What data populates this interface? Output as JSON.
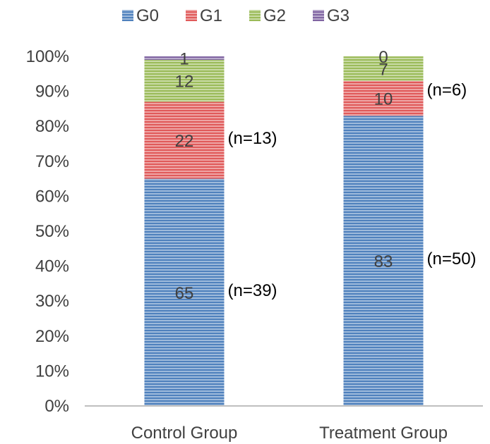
{
  "chart_data": {
    "type": "bar",
    "stacked": true,
    "percent_stacked": true,
    "categories": [
      "Control Group",
      "Treatment Group"
    ],
    "series": [
      {
        "name": "G0",
        "values": [
          65,
          83
        ],
        "color": "#4F81BD"
      },
      {
        "name": "G1",
        "values": [
          22,
          10
        ],
        "color": "#E05A5A"
      },
      {
        "name": "G2",
        "values": [
          12,
          7
        ],
        "color": "#9BBB59"
      },
      {
        "name": "G3",
        "values": [
          1,
          0
        ],
        "color": "#8064A2"
      }
    ],
    "ylim": [
      0,
      100
    ],
    "y_ticks": [
      "0%",
      "10%",
      "20%",
      "30%",
      "40%",
      "50%",
      "60%",
      "70%",
      "80%",
      "90%",
      "100%"
    ],
    "annotations": [
      {
        "category": "Control Group",
        "series": "G0",
        "text": "(n=39)"
      },
      {
        "category": "Control Group",
        "series": "G1",
        "text": "(n=13)"
      },
      {
        "category": "Treatment Group",
        "series": "G0",
        "text": "(n=50)"
      },
      {
        "category": "Treatment Group",
        "series": "G1",
        "text": "(n=6)"
      }
    ],
    "legend_position": "top",
    "grid": false,
    "title": "",
    "xlabel": "",
    "ylabel": "",
    "fill_pattern": "horizontal-stripes"
  }
}
